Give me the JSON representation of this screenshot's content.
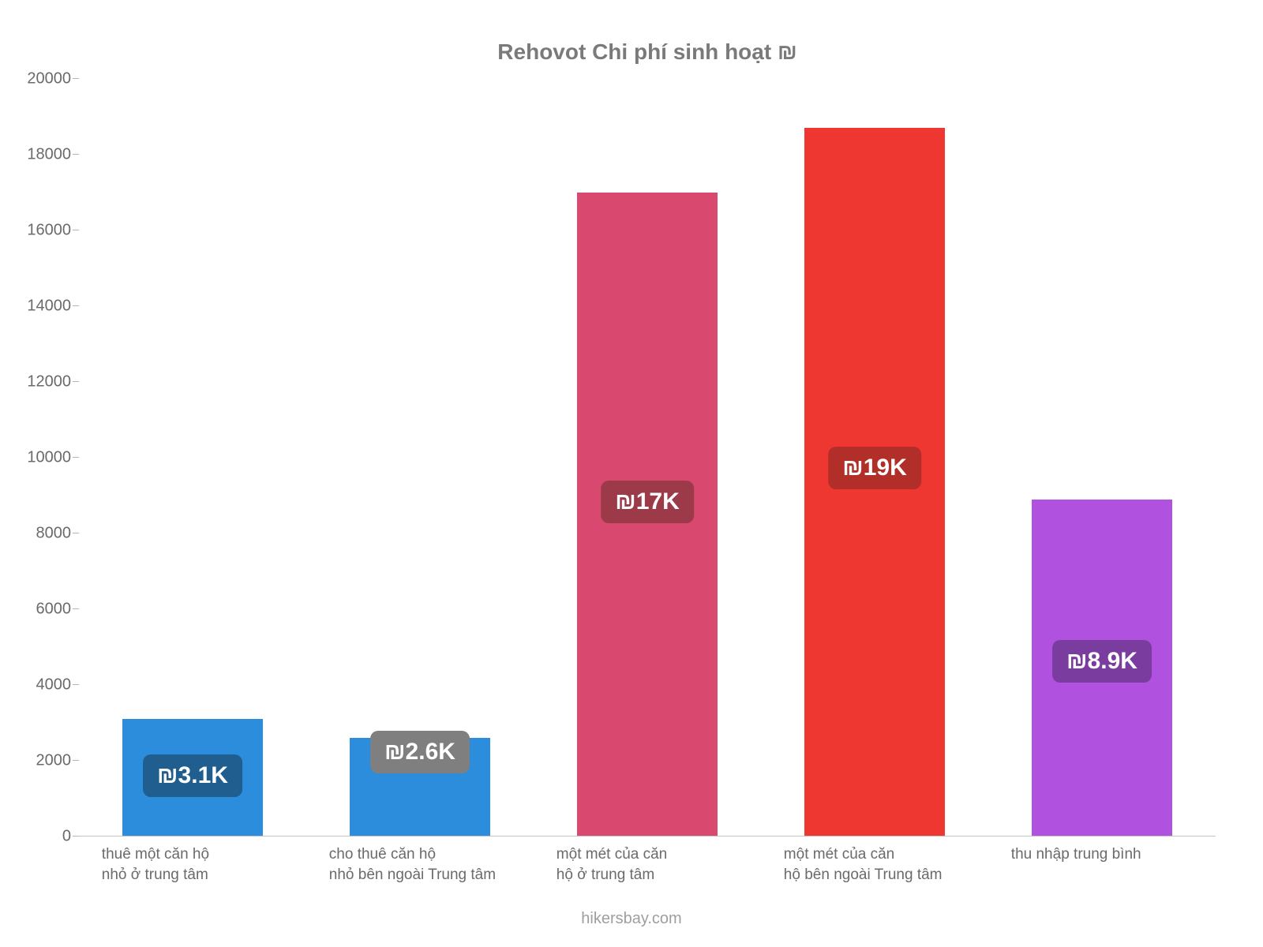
{
  "chart": {
    "type": "bar",
    "title": "Rehovot Chi phí sinh hoạt ₪",
    "title_color": "#7a7a7a",
    "title_fontsize": 28,
    "background_color": "#ffffff",
    "axis_label_color": "#6a6a6a",
    "axis_label_fontsize": 20,
    "baseline_color": "#c4c4c4",
    "y_axis": {
      "min": 0,
      "max": 20000,
      "tick_step": 2000,
      "ticks": [
        0,
        2000,
        4000,
        6000,
        8000,
        10000,
        12000,
        14000,
        16000,
        18000,
        20000
      ]
    },
    "bar_width_ratio": 0.62,
    "slot_gap_ratio": 0.06,
    "badge_fontsize": 30,
    "badge_radius": 10,
    "categories": [
      {
        "label": "thuê một căn hộ\nnhỏ ở trung tâm",
        "value": 3100,
        "display": "₪3.1K",
        "bar_color": "#2b8ddb",
        "badge_color": "#1f5e8e"
      },
      {
        "label": "cho thuê căn hộ\nnhỏ bên ngoài Trung tâm",
        "value": 2600,
        "display": "₪2.6K",
        "bar_color": "#2b8ddb",
        "badge_color": "#7f7f7f"
      },
      {
        "label": "một mét của căn\nhộ ở trung tâm",
        "value": 17000,
        "display": "₪17K",
        "bar_color": "#d9496f",
        "badge_color": "#9c3a49"
      },
      {
        "label": "một mét của căn\nhộ bên ngoài Trung tâm",
        "value": 18700,
        "display": "₪19K",
        "bar_color": "#ed3730",
        "badge_color": "#b22e29"
      },
      {
        "label": "thu nhập trung bình",
        "value": 8900,
        "display": "₪8.9K",
        "bar_color": "#b151e0",
        "badge_color": "#7a3c9e"
      }
    ],
    "footer": "hikersbay.com"
  }
}
